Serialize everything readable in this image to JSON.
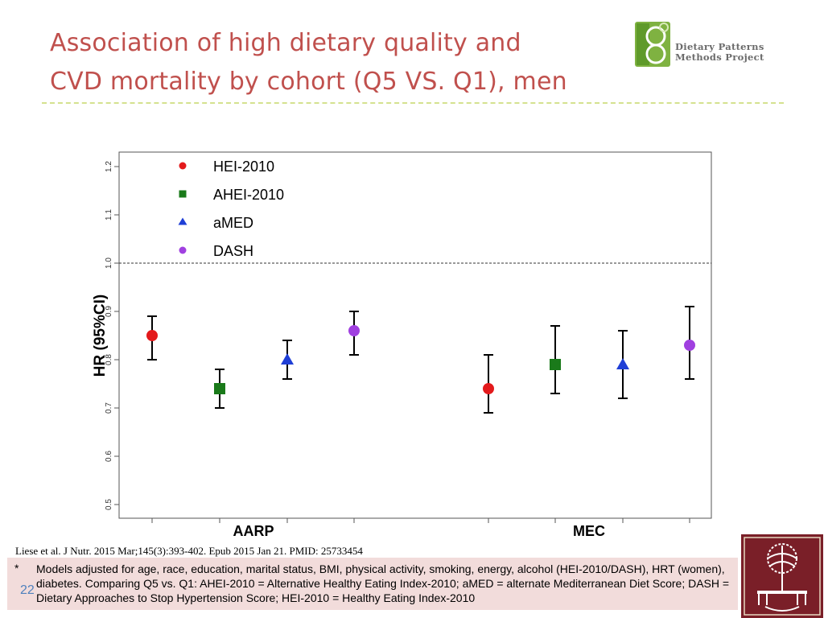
{
  "slide": {
    "title_line1": "Association of high dietary quality and",
    "title_line2": "CVD mortality by cohort (Q5 VS. Q1), men",
    "logo_line1": "Dietary Patterns",
    "logo_line2": "Methods Project",
    "citation": "Liese et al. J Nutr. 2015 Mar;145(3):393-402. Epub 2015 Jan 21. PMID:  25733454",
    "footnote_marker": "*",
    "footnote": "Models adjusted for age, race, education, marital status, BMI, physical activity, smoking, energy, alcohol (HEI-2010/DASH), HRT (women), diabetes. Comparing Q5 vs. Q1: AHEI-2010 = Alternative Healthy Eating Index-2010; aMED = alternate Mediterranean Diet Score; DASH = Dietary Approaches to Stop Hypertension Score; HEI-2010 = Healthy Eating Index-2010",
    "page_number": "22"
  },
  "chart_data": {
    "type": "scatter",
    "title": "",
    "xlabel": "",
    "ylabel": "HR (95%CI)",
    "ylim": [
      0.5,
      1.2
    ],
    "yticks": [
      0.5,
      0.6,
      0.7,
      0.8,
      0.9,
      1.0,
      1.1,
      1.2
    ],
    "ytick_labels": [
      "0.5",
      "0.6",
      "0.7",
      "0.8",
      "0.9",
      "1.0",
      "1.1",
      "1.2"
    ],
    "reference_line": 1.0,
    "groups": [
      "AARP",
      "MEC"
    ],
    "grid": false,
    "legend_position": "top-left",
    "series": [
      {
        "name": "HEI-2010",
        "marker": "circle",
        "color": "#e31a1c",
        "points": [
          {
            "group": "AARP",
            "hr": 0.85,
            "lower": 0.8,
            "upper": 0.89
          },
          {
            "group": "MEC",
            "hr": 0.74,
            "lower": 0.69,
            "upper": 0.81
          }
        ]
      },
      {
        "name": "AHEI-2010",
        "marker": "square",
        "color": "#1a7a1a",
        "points": [
          {
            "group": "AARP",
            "hr": 0.74,
            "lower": 0.7,
            "upper": 0.78
          },
          {
            "group": "MEC",
            "hr": 0.79,
            "lower": 0.73,
            "upper": 0.87
          }
        ]
      },
      {
        "name": "aMED",
        "marker": "triangle",
        "color": "#1f3fd6",
        "points": [
          {
            "group": "AARP",
            "hr": 0.8,
            "lower": 0.76,
            "upper": 0.84
          },
          {
            "group": "MEC",
            "hr": 0.79,
            "lower": 0.72,
            "upper": 0.86
          }
        ]
      },
      {
        "name": "DASH",
        "marker": "circle",
        "color": "#a040e0",
        "points": [
          {
            "group": "AARP",
            "hr": 0.86,
            "lower": 0.81,
            "upper": 0.9
          },
          {
            "group": "MEC",
            "hr": 0.83,
            "lower": 0.76,
            "upper": 0.91
          }
        ]
      }
    ]
  }
}
